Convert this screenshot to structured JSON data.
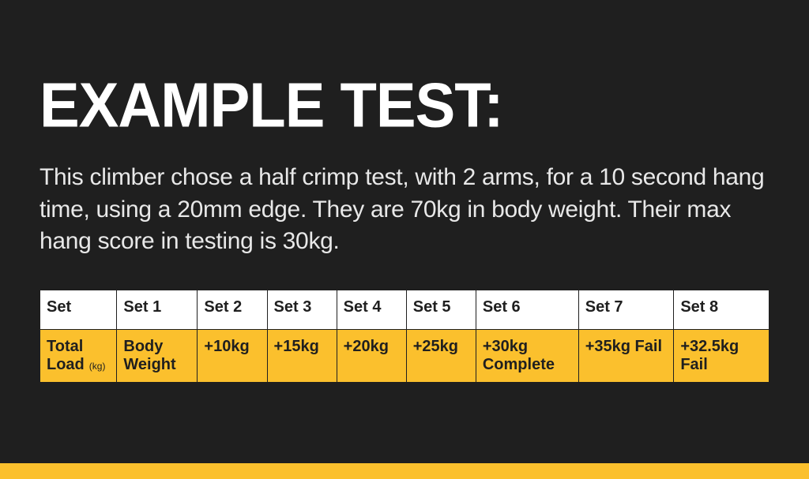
{
  "title": "EXAMPLE TEST:",
  "description": "This climber chose a half crimp test, with 2 arms, for a 10 second hang time, using a 20mm edge. They are 70kg in body weight. Their max hang score in testing is 30kg.",
  "table": {
    "headers": [
      "Set",
      "Set 1",
      "Set 2",
      "Set 3",
      "Set 4",
      "Set 5",
      "Set 6",
      "Set 7",
      "Set 8"
    ],
    "row_label": "Total Load",
    "row_label_unit": "(kg)",
    "cells": [
      "Body Weight",
      "+10kg",
      "+15kg",
      "+20kg",
      "+25kg",
      "+30kg Complete",
      "+35kg Fail",
      "+32.5kg Fail"
    ],
    "header_bg": "#ffffff",
    "cell_bg": "#fbc02d",
    "border_color": "#1f1f1f",
    "text_color": "#1f1f1f",
    "font_size": 20
  },
  "colors": {
    "background": "#1f1f1f",
    "title_color": "#ffffff",
    "desc_color": "#e8e8e8",
    "accent": "#fbc02d"
  },
  "typography": {
    "title_fontsize": 76,
    "title_weight": 900,
    "desc_fontsize": 30,
    "desc_weight": 500
  }
}
